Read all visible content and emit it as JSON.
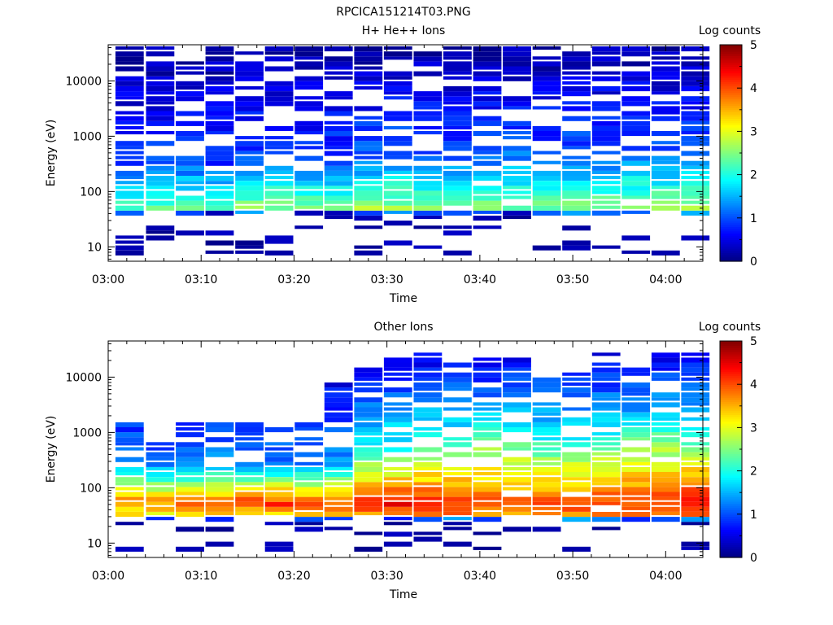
{
  "figure": {
    "title": "RPCICA151214T03.PNG"
  },
  "chart_data": [
    {
      "type": "heatmap",
      "title": "H+ He++ Ions",
      "xlabel": "Time",
      "ylabel": "Energy (eV)",
      "x_tick_labels": [
        "03:00",
        "03:10",
        "03:20",
        "03:30",
        "03:40",
        "03:50",
        "04:00"
      ],
      "x_range_minutes": [
        0,
        64
      ],
      "y_scale": "log",
      "y_range": [
        5.5,
        45000
      ],
      "y_tick_labels": [
        "10",
        "100",
        "1000",
        "10000"
      ],
      "colorbar": {
        "label": "Log counts",
        "range": [
          0,
          5
        ],
        "tick_labels": [
          "0",
          "1",
          "2",
          "3",
          "4",
          "5"
        ]
      },
      "time_bins_minutes": [
        2.3,
        5.6,
        8.8,
        12.0,
        15.2,
        18.4,
        21.6,
        24.8,
        28.0,
        31.2,
        34.4,
        37.6,
        40.8,
        44.0,
        47.2,
        50.4,
        53.6,
        56.8,
        60.0,
        63.2
      ],
      "profile": {
        "floor_ev": 42,
        "peak_ev": 52,
        "base_level": [
          1.2,
          1.3,
          1.3,
          1.2,
          1.4,
          1.4,
          1.3,
          1.3,
          1.5,
          1.6,
          1.5,
          1.5,
          1.5,
          1.6,
          1.5,
          1.5,
          1.5,
          1.6,
          1.6,
          1.6
        ],
        "peak_level": [
          2.2,
          2.3,
          2.4,
          2.3,
          2.5,
          2.6,
          2.5,
          2.5,
          2.7,
          2.6,
          2.6,
          2.6,
          2.5,
          2.4,
          2.5,
          2.4,
          2.5,
          2.6,
          2.6,
          2.6
        ],
        "tail_ev": 40000,
        "tail_fill": 0.72
      }
    },
    {
      "type": "heatmap",
      "title": "Other Ions",
      "xlabel": "Time",
      "ylabel": "Energy (eV)",
      "x_tick_labels": [
        "03:00",
        "03:10",
        "03:20",
        "03:30",
        "03:40",
        "03:50",
        "04:00"
      ],
      "x_range_minutes": [
        0,
        64
      ],
      "y_scale": "log",
      "y_range": [
        5.5,
        45000
      ],
      "y_tick_labels": [
        "10",
        "100",
        "1000",
        "10000"
      ],
      "colorbar": {
        "label": "Log counts",
        "range": [
          0,
          5
        ],
        "tick_labels": [
          "0",
          "1",
          "2",
          "3",
          "4",
          "5"
        ]
      },
      "time_bins_minutes": [
        2.3,
        5.6,
        8.8,
        12.0,
        15.2,
        18.4,
        21.6,
        24.8,
        28.0,
        31.2,
        34.4,
        37.6,
        40.8,
        44.0,
        47.2,
        50.4,
        53.6,
        56.8,
        60.0,
        63.2
      ],
      "profile": {
        "floor_ev": 32,
        "peak_ev": 52,
        "base_level": [
          1.6,
          1.5,
          1.6,
          1.7,
          1.7,
          1.6,
          1.6,
          1.8,
          2.8,
          2.9,
          3.0,
          3.0,
          3.1,
          3.0,
          2.9,
          2.9,
          3.0,
          3.1,
          3.2,
          3.2
        ],
        "peak_level": [
          3.8,
          3.7,
          3.8,
          4.0,
          4.1,
          4.2,
          4.1,
          4.0,
          4.1,
          4.4,
          4.2,
          4.1,
          4.0,
          3.9,
          4.0,
          4.0,
          4.1,
          4.1,
          4.2,
          4.3
        ],
        "tail_ev": [
          1500,
          700,
          1400,
          1800,
          1500,
          1500,
          1600,
          8000,
          15000,
          22000,
          30000,
          18000,
          25000,
          24000,
          12000,
          14000,
          28000,
          19000,
          30000,
          30000
        ],
        "tail_fill": 0.75
      }
    }
  ]
}
